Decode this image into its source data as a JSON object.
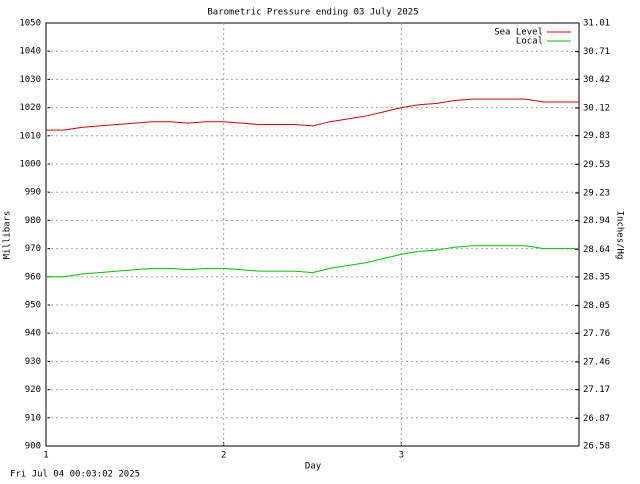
{
  "chart_data": {
    "type": "line",
    "title": "Barometric Pressure ending 03 July 2025",
    "x_label": "Day",
    "y_label": "Millibars",
    "y2_label": "Inches/Hg",
    "footer": "Fri Jul 04 00:03:02 2025",
    "x": [
      1.0,
      1.1,
      1.2,
      1.3,
      1.4,
      1.5,
      1.6,
      1.7,
      1.8,
      1.9,
      2.0,
      2.1,
      2.2,
      2.3,
      2.4,
      2.5,
      2.6,
      2.7,
      2.8,
      2.9,
      3.0,
      3.1,
      3.2,
      3.3,
      3.4,
      3.5,
      3.6,
      3.7,
      3.8,
      3.9,
      4.0
    ],
    "series": [
      {
        "name": "Sea Level",
        "color": "#e00000",
        "values": [
          1012,
          1012,
          1013,
          1013.5,
          1014,
          1014.5,
          1015,
          1015,
          1014.5,
          1015,
          1015,
          1014.5,
          1014,
          1014,
          1014,
          1013.5,
          1015,
          1016,
          1017,
          1018.5,
          1020,
          1021,
          1021.5,
          1022.5,
          1023,
          1023,
          1023,
          1023,
          1022,
          1022,
          1022
        ]
      },
      {
        "name": "Local",
        "color": "#00c000",
        "values": [
          960,
          960,
          961,
          961.5,
          962,
          962.5,
          963,
          963,
          962.5,
          963,
          963,
          962.5,
          962,
          962,
          962,
          961.5,
          963,
          964,
          965,
          966.5,
          968,
          969,
          969.5,
          970.5,
          971,
          971,
          971,
          971,
          970,
          970,
          970
        ]
      }
    ],
    "xlim": [
      1,
      4
    ],
    "xticks": [
      1,
      2,
      3
    ],
    "ylim": [
      900,
      1050
    ],
    "yticks": [
      900,
      910,
      920,
      930,
      940,
      950,
      960,
      970,
      980,
      990,
      1000,
      1010,
      1020,
      1030,
      1040,
      1050
    ],
    "y2lim": [
      26.58,
      31.01
    ],
    "y2ticks": [
      26.58,
      26.87,
      27.17,
      27.46,
      27.76,
      28.05,
      28.35,
      28.64,
      28.94,
      29.23,
      29.53,
      29.83,
      30.12,
      30.42,
      30.71,
      31.01
    ],
    "grid": true,
    "legend": "upper right"
  }
}
